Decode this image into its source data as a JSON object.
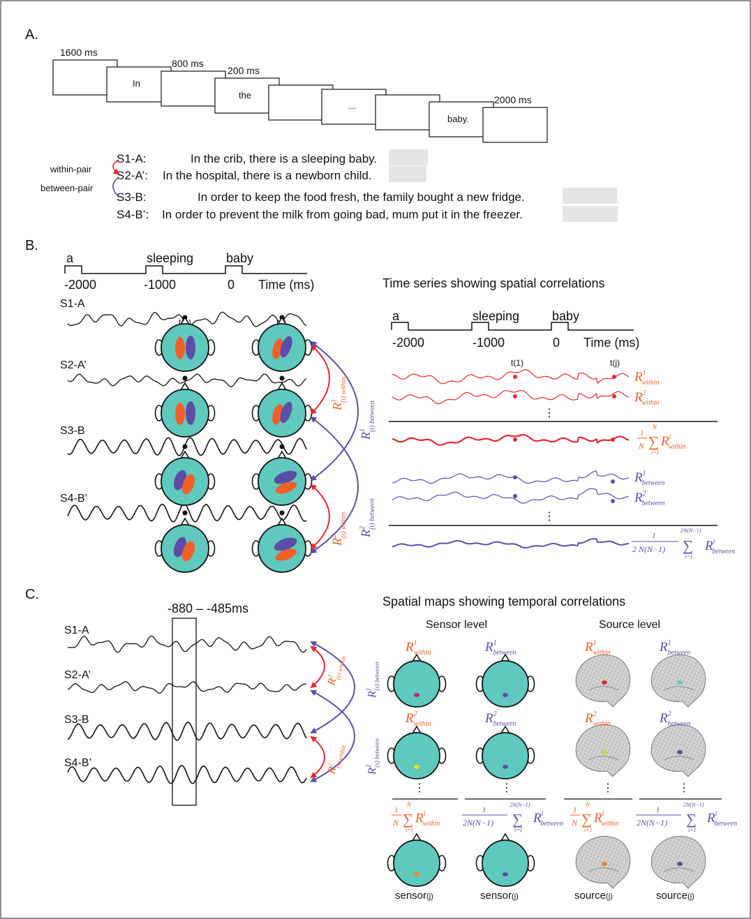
{
  "panels": {
    "a": "A.",
    "b": "B.",
    "c": "C."
  },
  "panel_a": {
    "durations": {
      "first": "1600 ms",
      "second": "800 ms",
      "third": "200 ms",
      "last": "2000 ms"
    },
    "frames": {
      "in": "In",
      "the": "the",
      "dots": "...",
      "baby": "baby."
    },
    "pair_labels": {
      "within": "within-pair",
      "between": "between-pair"
    },
    "sentences": [
      {
        "label": "S1-A:",
        "pre": "In the crib, there is a sleeping ",
        "target": "baby."
      },
      {
        "label": "S2-A’:",
        "pre": "In the hospital, there is a newborn ",
        "target": "child."
      },
      {
        "label": "S3-B:",
        "pre": "In order to keep the food fresh, the family bought a new ",
        "target": "fridge."
      },
      {
        "label": "S4-B’:",
        "pre": "In order to prevent the milk from going bad, mum put it in the ",
        "target": "freezer."
      }
    ]
  },
  "timeline": {
    "words": [
      "a",
      "sleeping",
      "baby"
    ],
    "ticks": [
      "-2000",
      "-1000",
      "0"
    ],
    "axis_label": "Time (ms)"
  },
  "signals": {
    "s1": "S1-A",
    "s2": "S2-A’",
    "s3": "S3-B",
    "s4": "S4-B’"
  },
  "markers": {
    "t1": "t(1)",
    "tj": "t(j)"
  },
  "panel_b_right": {
    "title": "Time series showing spatial correlations",
    "dots": "⋮"
  },
  "math": {
    "R": "R",
    "sup1": "1",
    "sup2": "2",
    "supi": "i",
    "within": "within",
    "between": "between",
    "one": "1",
    "N": "N",
    "i_eq_1": "i=1",
    "sum": "∑",
    "den_b": "2 N(N−1)",
    "den_c": "2N(N−1)",
    "top_b": "2N(N−1)",
    "sub_t_within": "(t) within",
    "sub_t_between": "(t) between",
    "sub_s_within": "(s) within",
    "sub_s_between": "(s) between"
  },
  "panel_c": {
    "window": "-880 – -485ms",
    "title": "Spatial maps showing temporal correlations",
    "sensor_level": "Sensor level",
    "source_level": "Source level",
    "sensor_j": "sensor",
    "source_j": "source",
    "j": "(j)"
  },
  "colors": {
    "orange": "#f2602a",
    "purple": "#5b4ea8",
    "red": "#e8282e",
    "teal": "#5fc9bd",
    "yellow": "#e6e61c"
  }
}
